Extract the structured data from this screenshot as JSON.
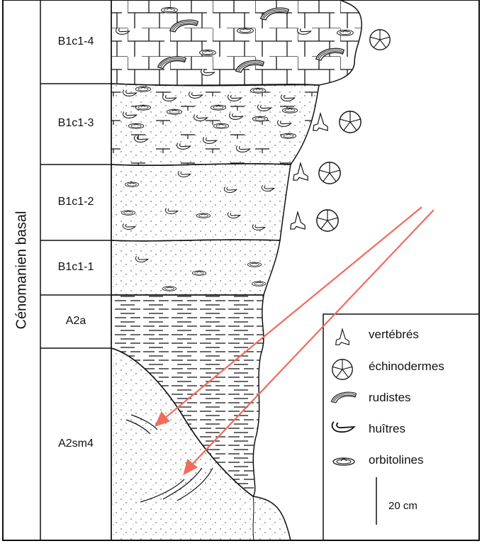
{
  "stage": "Cénomanien basal",
  "units": [
    "B1c1-4",
    "B1c1-3",
    "B1c1-2",
    "B1c1-1",
    "A2a",
    "A2sm4"
  ],
  "legend": [
    {
      "icon": "vertebrate-tooth-icon",
      "label": "vertébrés"
    },
    {
      "icon": "echinoderm-icon",
      "label": "échinodermes"
    },
    {
      "icon": "rudist-icon",
      "label": "rudistes"
    },
    {
      "icon": "oyster-icon",
      "label": "huîtres"
    },
    {
      "icon": "orbitolina-icon",
      "label": "orbitolines"
    }
  ],
  "scale_label": "20 cm",
  "colors": {
    "arrow": "#f26b5b",
    "line": "#111111"
  }
}
